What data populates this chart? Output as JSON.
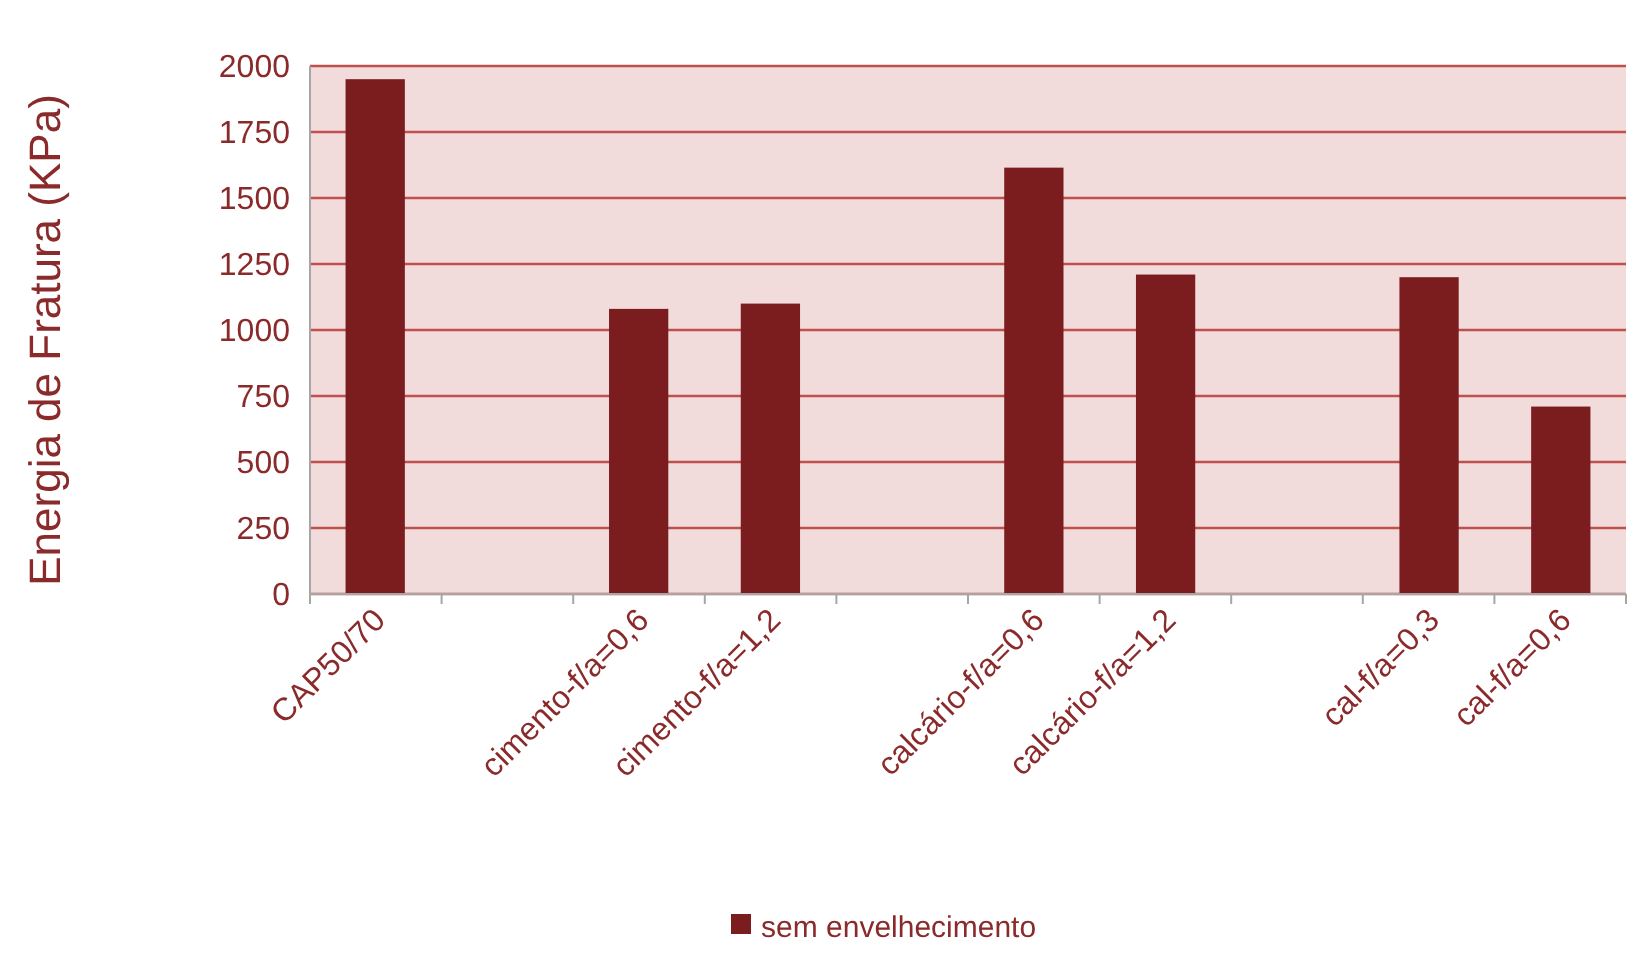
{
  "chart_data": {
    "type": "bar",
    "ylabel": "Energia de Fratura (KPa)",
    "categories": [
      "CAP50/70",
      null,
      "cimento-f/a=0,6",
      "cimento-f/a=1,2",
      null,
      "calcário-f/a=0,6",
      "calcário-f/a=1,2",
      null,
      "cal-f/a=0,3",
      "cal-f/a=0,6"
    ],
    "series": [
      {
        "name": "sem envelhecimento",
        "color": "#7b1c1f",
        "values": [
          1950,
          null,
          1080,
          1100,
          null,
          1615,
          1210,
          null,
          1200,
          710
        ]
      }
    ],
    "ylim": [
      0,
      2000
    ],
    "yticks": [
      0,
      250,
      500,
      750,
      1000,
      1250,
      1500,
      1750,
      2000
    ],
    "grid": "y",
    "legend": "bottom"
  }
}
